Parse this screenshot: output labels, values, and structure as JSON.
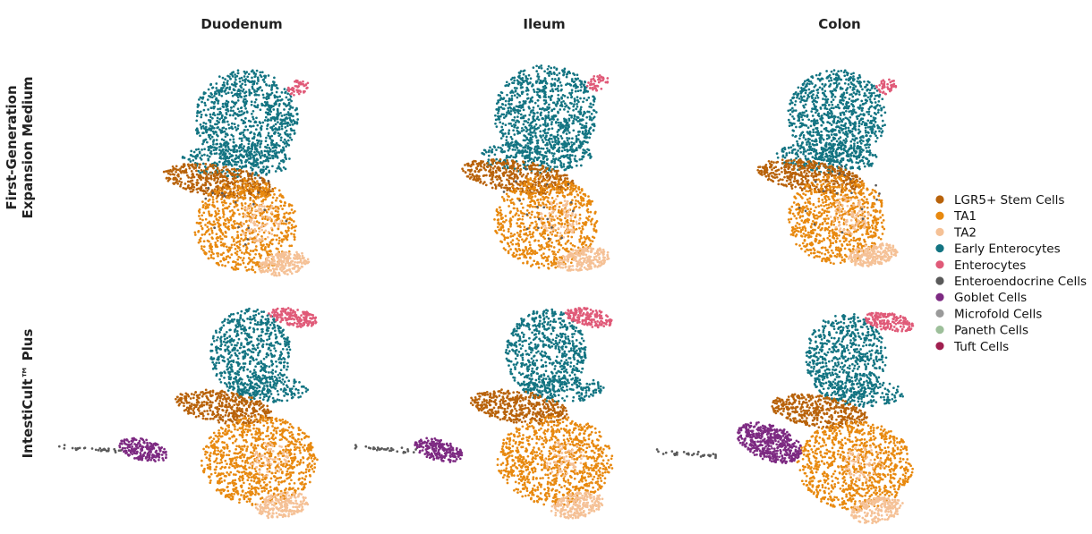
{
  "chart_data": {
    "type": "scatter",
    "description": "",
    "columns": [
      "Duodenum",
      "Ileum",
      "Colon"
    ],
    "rows": [
      [
        "First-Generation",
        "Expansion Medium"
      ],
      [
        "IntestiCult™ Plus"
      ]
    ],
    "legend": [
      {
        "name": "LGR5+ Stem Cells",
        "color": "#b8620a"
      },
      {
        "name": "TA1",
        "color": "#e8890f"
      },
      {
        "name": "TA2",
        "color": "#f5c196"
      },
      {
        "name": "Early Enterocytes",
        "color": "#137482"
      },
      {
        "name": "Enterocytes",
        "color": "#e05a78"
      },
      {
        "name": "Enteroendocrine Cells",
        "color": "#5a5a5a"
      },
      {
        "name": "Goblet Cells",
        "color": "#7d2a82"
      },
      {
        "name": "Microfold Cells",
        "color": "#9a9a9a"
      },
      {
        "name": "Paneth Cells",
        "color": "#9dbf9a"
      },
      {
        "name": "Tuft Cells",
        "color": "#a01f4f"
      }
    ],
    "legend_position": "right",
    "axes_visible": false,
    "grid": false
  }
}
